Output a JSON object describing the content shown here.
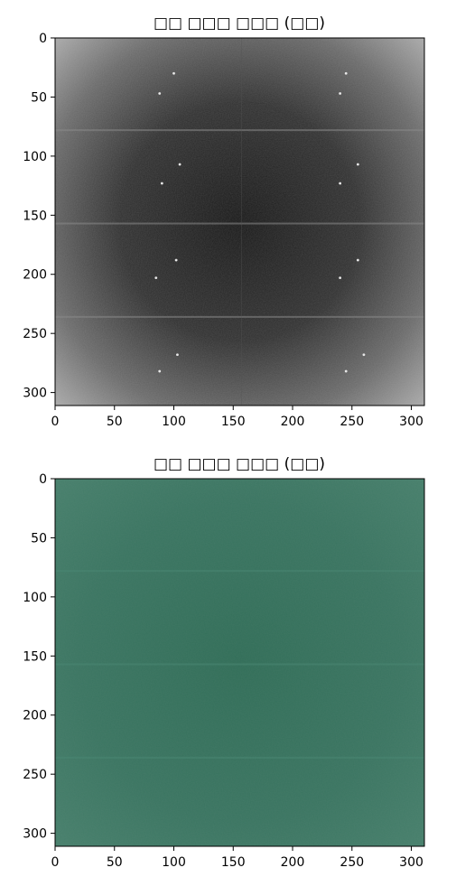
{
  "chart_data": [
    {
      "type": "heatmap",
      "title": "□□ □□□ □□□ (□□)",
      "xlim": [
        0,
        311
      ],
      "ylim": [
        311,
        0
      ],
      "xticks": [
        0,
        50,
        100,
        150,
        200,
        250,
        300
      ],
      "yticks": [
        0,
        50,
        100,
        150,
        200,
        250,
        300
      ],
      "x_tick_labels": [
        "0",
        "50",
        "100",
        "150",
        "200",
        "250",
        "300"
      ],
      "y_tick_labels": [
        "0",
        "50",
        "100",
        "150",
        "200",
        "250",
        "300"
      ],
      "colormap": "grayscale",
      "description_values": {
        "center_dark": "#151515",
        "edge_light": "#a8a8a8"
      },
      "bright_spots": [
        [
          100,
          30
        ],
        [
          245,
          30
        ],
        [
          88,
          47
        ],
        [
          240,
          47
        ],
        [
          105,
          107
        ],
        [
          255,
          107
        ],
        [
          90,
          123
        ],
        [
          240,
          123
        ],
        [
          102,
          188
        ],
        [
          255,
          188
        ],
        [
          85,
          203
        ],
        [
          240,
          203
        ],
        [
          103,
          268
        ],
        [
          260,
          268
        ],
        [
          88,
          282
        ],
        [
          245,
          282
        ]
      ],
      "horizontal_bands_y": [
        78,
        157,
        236
      ],
      "vertical_band_x": 157
    },
    {
      "type": "heatmap",
      "title": "□□ □□□ □□□ (□□)",
      "xlim": [
        0,
        311
      ],
      "ylim": [
        311,
        0
      ],
      "xticks": [
        0,
        50,
        100,
        150,
        200,
        250,
        300
      ],
      "yticks": [
        0,
        50,
        100,
        150,
        200,
        250,
        300
      ],
      "x_tick_labels": [
        "0",
        "50",
        "100",
        "150",
        "200",
        "250",
        "300"
      ],
      "y_tick_labels": [
        "0",
        "50",
        "100",
        "150",
        "200",
        "250",
        "300"
      ],
      "colormap": "green-tint",
      "description_values": {
        "center_color": "#33705a",
        "edge_color": "#437c69"
      },
      "horizontal_bands_y": [
        78,
        157,
        236
      ]
    }
  ]
}
